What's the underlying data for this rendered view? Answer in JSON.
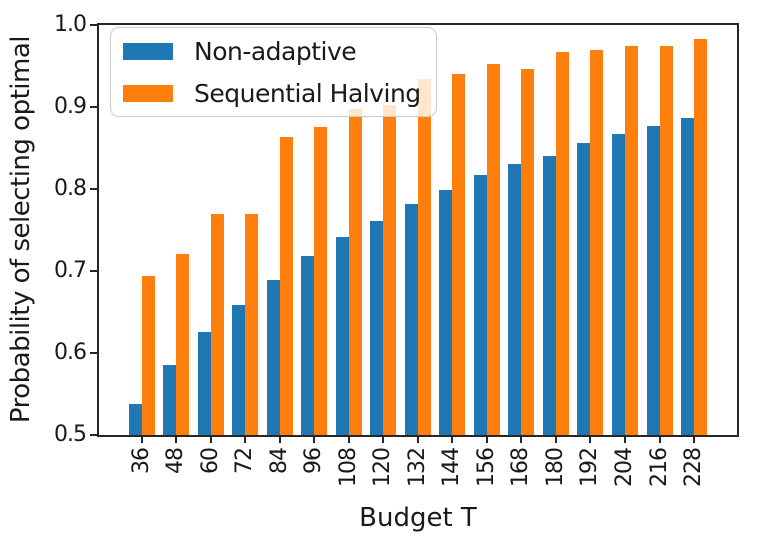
{
  "figure": {
    "background": "#ffffff",
    "spine_color": "#262626",
    "text_color": "#1a1a1a"
  },
  "chart_data": {
    "type": "bar",
    "title": "",
    "xlabel": "Budget T",
    "ylabel": "Probability of selecting optimal",
    "categories": [
      "36",
      "48",
      "60",
      "72",
      "84",
      "96",
      "108",
      "120",
      "132",
      "144",
      "156",
      "168",
      "180",
      "192",
      "204",
      "216",
      "228"
    ],
    "series": [
      {
        "name": "Non-adaptive",
        "color": "#1f77b4",
        "values": [
          0.538,
          0.585,
          0.626,
          0.659,
          0.689,
          0.718,
          0.742,
          0.761,
          0.782,
          0.799,
          0.817,
          0.831,
          0.84,
          0.856,
          0.867,
          0.877,
          0.886
        ]
      },
      {
        "name": "Sequential Halving",
        "color": "#ff7f0e",
        "values": [
          0.694,
          0.721,
          0.769,
          0.77,
          0.864,
          0.876,
          0.897,
          0.902,
          0.934,
          0.94,
          0.952,
          0.946,
          0.967,
          0.969,
          0.975,
          0.975,
          0.983
        ]
      }
    ],
    "ylim": [
      0.5,
      1.0
    ],
    "yticks": [
      "0.5",
      "0.6",
      "0.7",
      "0.8",
      "0.9",
      "1.0"
    ],
    "xtick_rotation": 90,
    "grid": "off",
    "legend_position": "upper left"
  }
}
